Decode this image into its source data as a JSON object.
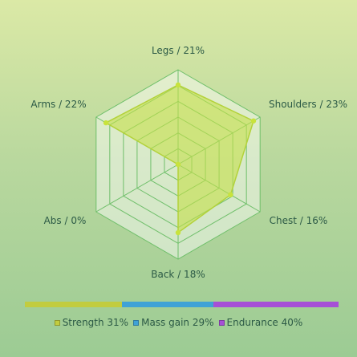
{
  "chart_data": {
    "type": "radar",
    "axes": [
      {
        "name": "Legs",
        "label": "Legs / 21%",
        "value": 21
      },
      {
        "name": "Shoulders",
        "label": "Shoulders / 23%",
        "value": 23
      },
      {
        "name": "Chest",
        "label": "Chest / 16%",
        "value": 16
      },
      {
        "name": "Back",
        "label": "Back / 18%",
        "value": 18
      },
      {
        "name": "Abs",
        "label": "Abs / 0%",
        "value": 0
      },
      {
        "name": "Arms",
        "label": "Arms / 22%",
        "value": 22
      }
    ],
    "rmax": 25,
    "rings": 6,
    "grid": true,
    "series_color": "#c4e04a",
    "breakdown": [
      {
        "name": "Strength",
        "percent": 31,
        "label": "Strength 31%",
        "color": "#c2cc3e"
      },
      {
        "name": "Mass gain",
        "percent": 29,
        "label": "Mass gain 29%",
        "color": "#3fa2d6"
      },
      {
        "name": "Endurance",
        "percent": 40,
        "label": "Endurance 40%",
        "color": "#a64fd6"
      }
    ]
  }
}
